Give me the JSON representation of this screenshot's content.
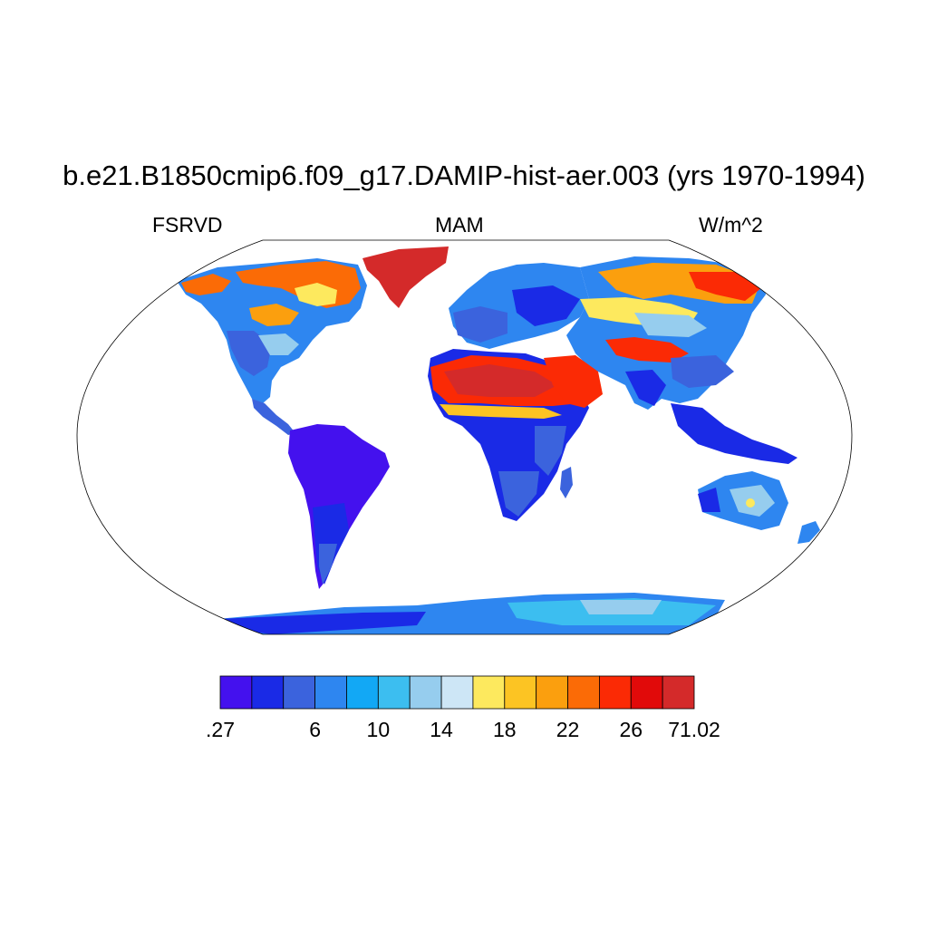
{
  "title": "b.e21.B1850cmip6.f09_g17.DAMIP-hist-aer.003 (yrs 1970-1994)",
  "left_string": "FSRVD",
  "center_string": "MAM",
  "right_string": "W/m^2",
  "colorbar": {
    "colors": [
      "#4411ee",
      "#1a2ae6",
      "#3b63dd",
      "#2e86f0",
      "#12a8f5",
      "#3cbef0",
      "#96cdee",
      "#cde6f6",
      "#fde95e",
      "#fcc423",
      "#fb9f0e",
      "#fb6b06",
      "#fb2a05",
      "#e10a0a",
      "#d42a2a"
    ],
    "tick_labels": [
      ".27",
      "6",
      "10",
      "14",
      "18",
      "22",
      "26",
      "71.02"
    ]
  },
  "projection": "Robinson",
  "missing_value_color": "#ffffff"
}
